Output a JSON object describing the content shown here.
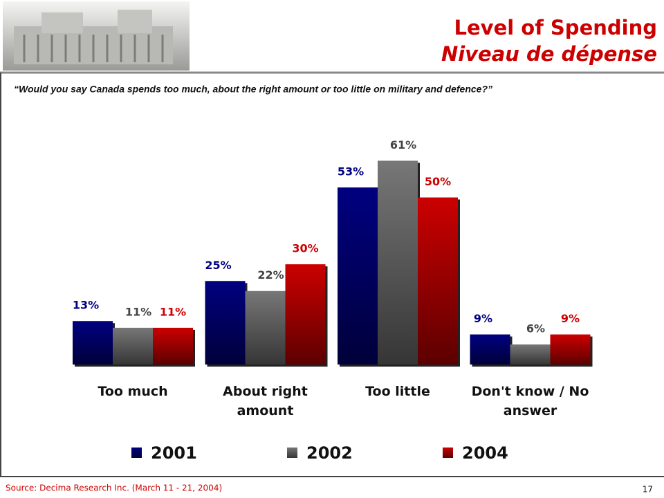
{
  "chart_data": {
    "type": "bar",
    "title": "Level of Spending",
    "subtitle": "Niveau de dépense",
    "question": "“Would you say Canada spends too much, about the right amount or too little on military and defence?”",
    "categories": [
      "Too much",
      "About right amount",
      "Too little",
      "Don't know / No answer"
    ],
    "series": [
      {
        "name": "2001",
        "color": "#000080",
        "values": [
          13,
          25,
          53,
          9
        ],
        "value_labels": [
          "13%",
          "25%",
          "53%",
          "9%"
        ]
      },
      {
        "name": "2002",
        "color": "#777777",
        "values": [
          11,
          22,
          61,
          6
        ],
        "value_labels": [
          "11%",
          "22%",
          "61%",
          "6%"
        ]
      },
      {
        "name": "2004",
        "color": "#cc0000",
        "values": [
          11,
          30,
          50,
          9
        ],
        "value_labels": [
          "11%",
          "30%",
          "50%",
          "9%"
        ]
      }
    ],
    "label_colors": [
      "#000080",
      "#444444",
      "#cc0000"
    ],
    "source": "Source: Decima Research Inc. (March 11 - 21, 2004)",
    "page_number": "17"
  }
}
